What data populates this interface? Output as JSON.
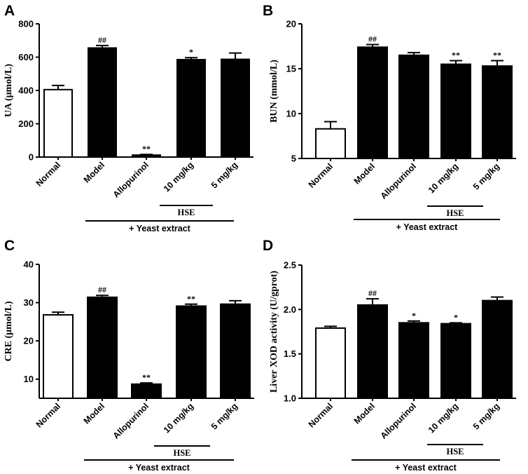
{
  "figure": {
    "categories": [
      "Normal",
      "Model",
      "Allopurinol",
      "10 mg/kg",
      "5 mg/kg"
    ],
    "hse_label": "HSE",
    "yeast_label": "+ Yeast extract",
    "colors": {
      "normal_fill": "#ffffff",
      "treated_fill": "#000000",
      "ink": "#000000"
    }
  },
  "chart_data": [
    {
      "panel": "A",
      "type": "bar",
      "ylabel": "UA (μmol/L)",
      "ylim": [
        0,
        800
      ],
      "yticks": [
        0,
        200,
        400,
        600,
        800
      ],
      "categories": [
        "Normal",
        "Model",
        "Allopurinol",
        "10 mg/kg",
        "5 mg/kg"
      ],
      "values": [
        405,
        655,
        12,
        585,
        587
      ],
      "errors": [
        25,
        15,
        4,
        12,
        38
      ],
      "annotations": [
        "",
        "##",
        "**",
        "*",
        ""
      ]
    },
    {
      "panel": "B",
      "type": "bar",
      "ylabel": "BUN (mmol/L)",
      "ylim": [
        5,
        20
      ],
      "yticks": [
        5,
        10,
        15,
        20
      ],
      "categories": [
        "Normal",
        "Model",
        "Allopurinol",
        "10 mg/kg",
        "5 mg/kg"
      ],
      "values": [
        8.3,
        17.4,
        16.5,
        15.5,
        15.3
      ],
      "errors": [
        0.8,
        0.3,
        0.3,
        0.4,
        0.6
      ],
      "annotations": [
        "",
        "##",
        "",
        "**",
        "**"
      ]
    },
    {
      "panel": "C",
      "type": "bar",
      "ylabel": "CRE (μmol/L)",
      "ylim": [
        5,
        40
      ],
      "yticks": [
        10,
        20,
        30,
        40
      ],
      "categories": [
        "Normal",
        "Model",
        "Allopurinol",
        "10 mg/kg",
        "5 mg/kg"
      ],
      "values": [
        26.8,
        31.4,
        8.7,
        29.1,
        29.6
      ],
      "errors": [
        0.7,
        0.5,
        0.3,
        0.5,
        0.9
      ],
      "annotations": [
        "",
        "##",
        "**",
        "**",
        ""
      ]
    },
    {
      "panel": "D",
      "type": "bar",
      "ylabel": "Liver XOD activity (U/gprot)",
      "ylim": [
        1.0,
        2.5
      ],
      "yticks": [
        1.0,
        1.5,
        2.0,
        2.5
      ],
      "categories": [
        "Normal",
        "Model",
        "Allopurinol",
        "10 mg/kg",
        "5 mg/kg"
      ],
      "values": [
        1.79,
        2.05,
        1.85,
        1.84,
        2.1
      ],
      "errors": [
        0.02,
        0.07,
        0.02,
        0.01,
        0.04
      ],
      "annotations": [
        "",
        "##",
        "*",
        "*",
        ""
      ]
    }
  ]
}
